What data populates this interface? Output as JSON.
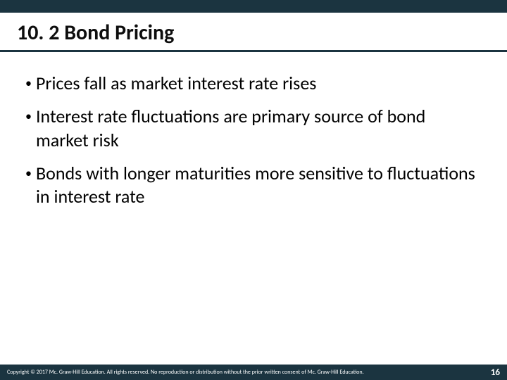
{
  "colors": {
    "header_bar": "#1b3440",
    "underline": "#1b3440",
    "footer_bg": "#1b3440",
    "page_bg": "#ffffff",
    "title_text": "#0d0d0d",
    "body_text": "#000000",
    "footer_text": "#ffffff"
  },
  "typography": {
    "title_fontsize": 30,
    "title_weight": "bold",
    "bullet_fontsize": 26,
    "footer_fontsize": 8,
    "page_num_fontsize": 13
  },
  "slide": {
    "title": "10. 2 Bond Pricing",
    "bullets": [
      "Prices fall as market interest rate rises",
      "Interest rate fluctuations are primary source of bond market risk",
      "Bonds with longer maturities more sensitive to fluctuations in interest rate"
    ]
  },
  "footer": {
    "copyright": "Copyright © 2017 Mc. Graw-Hill Education. All rights reserved. No reproduction or distribution without the prior written consent of Mc. Graw-Hill Education.",
    "page_number": "16"
  }
}
